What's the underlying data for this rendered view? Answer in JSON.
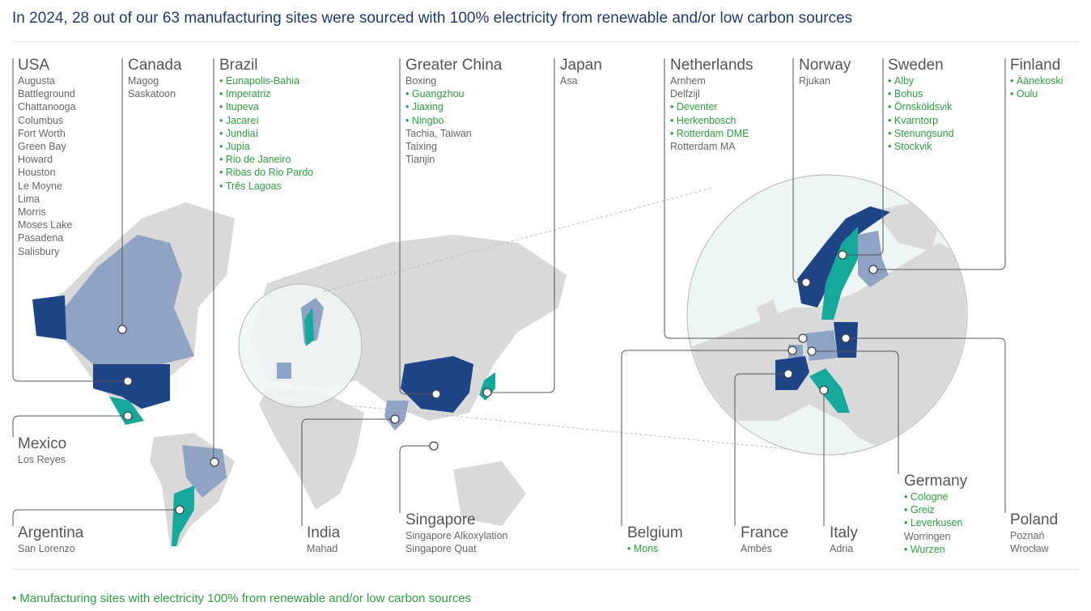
{
  "title": "In 2024, 28 out of our 63 manufacturing sites were sourced with 100% electricity from renewable and/or low carbon sources",
  "legend": "Manufacturing sites with electricity 100% from renewable and/or low carbon sources",
  "countries": [
    {
      "name": "USA",
      "sites": [
        {
          "name": "Augusta",
          "renewable": false
        },
        {
          "name": "Battleground",
          "renewable": false
        },
        {
          "name": "Chattanooga",
          "renewable": false
        },
        {
          "name": "Columbus",
          "renewable": false
        },
        {
          "name": "Fort Worth",
          "renewable": false
        },
        {
          "name": "Green Bay",
          "renewable": false
        },
        {
          "name": "Howard",
          "renewable": false
        },
        {
          "name": "Houston",
          "renewable": false
        },
        {
          "name": "Le Moyne",
          "renewable": false
        },
        {
          "name": "Lima",
          "renewable": false
        },
        {
          "name": "Morris",
          "renewable": false
        },
        {
          "name": "Moses Lake",
          "renewable": false
        },
        {
          "name": "Pasadena",
          "renewable": false
        },
        {
          "name": "Salisbury",
          "renewable": false
        }
      ]
    },
    {
      "name": "Canada",
      "sites": [
        {
          "name": "Magog",
          "renewable": false
        },
        {
          "name": "Saskatoon",
          "renewable": false
        }
      ]
    },
    {
      "name": "Brazil",
      "sites": [
        {
          "name": "Eunapolis-Bahia",
          "renewable": true
        },
        {
          "name": "Imperatriz",
          "renewable": true
        },
        {
          "name": "Itupeva",
          "renewable": true
        },
        {
          "name": "Jacareí",
          "renewable": true
        },
        {
          "name": "Jundiaí",
          "renewable": true
        },
        {
          "name": "Jupia",
          "renewable": true
        },
        {
          "name": "Rio de Janeiro",
          "renewable": true
        },
        {
          "name": "Ribas do Rio Pardo",
          "renewable": true
        },
        {
          "name": "Três Lagoas",
          "renewable": true
        }
      ]
    },
    {
      "name": "Greater China",
      "sites": [
        {
          "name": "Boxing",
          "renewable": false
        },
        {
          "name": "Guangzhou",
          "renewable": true
        },
        {
          "name": "Jiaxing",
          "renewable": true
        },
        {
          "name": "Ningbo",
          "renewable": true
        },
        {
          "name": "Tachia, Taiwan",
          "renewable": false
        },
        {
          "name": "Taixing",
          "renewable": false
        },
        {
          "name": "Tianjin",
          "renewable": false
        }
      ]
    },
    {
      "name": "Japan",
      "sites": [
        {
          "name": "Asa",
          "renewable": false
        }
      ]
    },
    {
      "name": "Netherlands",
      "sites": [
        {
          "name": "Arnhem",
          "renewable": false
        },
        {
          "name": "Delfzijl",
          "renewable": false
        },
        {
          "name": "Deventer",
          "renewable": true
        },
        {
          "name": "Herkenbosch",
          "renewable": true
        },
        {
          "name": "Rotterdam DME",
          "renewable": true
        },
        {
          "name": "Rotterdam MA",
          "renewable": false
        }
      ]
    },
    {
      "name": "Norway",
      "sites": [
        {
          "name": "Rjukan",
          "renewable": false
        }
      ]
    },
    {
      "name": "Sweden",
      "sites": [
        {
          "name": "Alby",
          "renewable": true
        },
        {
          "name": "Bohus",
          "renewable": true
        },
        {
          "name": "Örnsköldsvik",
          "renewable": true
        },
        {
          "name": "Kvarntorp",
          "renewable": true
        },
        {
          "name": "Stenungsund",
          "renewable": true
        },
        {
          "name": "Stockvik",
          "renewable": true
        }
      ]
    },
    {
      "name": "Finland",
      "sites": [
        {
          "name": "Äänekoski",
          "renewable": true
        },
        {
          "name": "Oulu",
          "renewable": true
        }
      ]
    },
    {
      "name": "Mexico",
      "sites": [
        {
          "name": "Los Reyes",
          "renewable": false
        }
      ]
    },
    {
      "name": "Argentina",
      "sites": [
        {
          "name": "San Lorenzo",
          "renewable": false
        }
      ]
    },
    {
      "name": "India",
      "sites": [
        {
          "name": "Mahad",
          "renewable": false
        }
      ]
    },
    {
      "name": "Singapore",
      "sites": [
        {
          "name": "Singapore Alkoxylation",
          "renewable": false
        },
        {
          "name": "Singapore Quat",
          "renewable": false
        }
      ]
    },
    {
      "name": "Belgium",
      "sites": [
        {
          "name": "Mons",
          "renewable": true
        }
      ]
    },
    {
      "name": "France",
      "sites": [
        {
          "name": "Ambès",
          "renewable": false
        }
      ]
    },
    {
      "name": "Italy",
      "sites": [
        {
          "name": "Adria",
          "renewable": false
        }
      ]
    },
    {
      "name": "Germany",
      "sites": [
        {
          "name": "Cologne",
          "renewable": true
        },
        {
          "name": "Greiz",
          "renewable": true
        },
        {
          "name": "Leverkusen",
          "renewable": true
        },
        {
          "name": "Worringen",
          "renewable": false
        },
        {
          "name": "Wurzen",
          "renewable": true
        }
      ]
    },
    {
      "name": "Poland",
      "sites": [
        {
          "name": "Poznań",
          "renewable": false
        },
        {
          "name": "Wrocław",
          "renewable": false
        }
      ]
    }
  ]
}
